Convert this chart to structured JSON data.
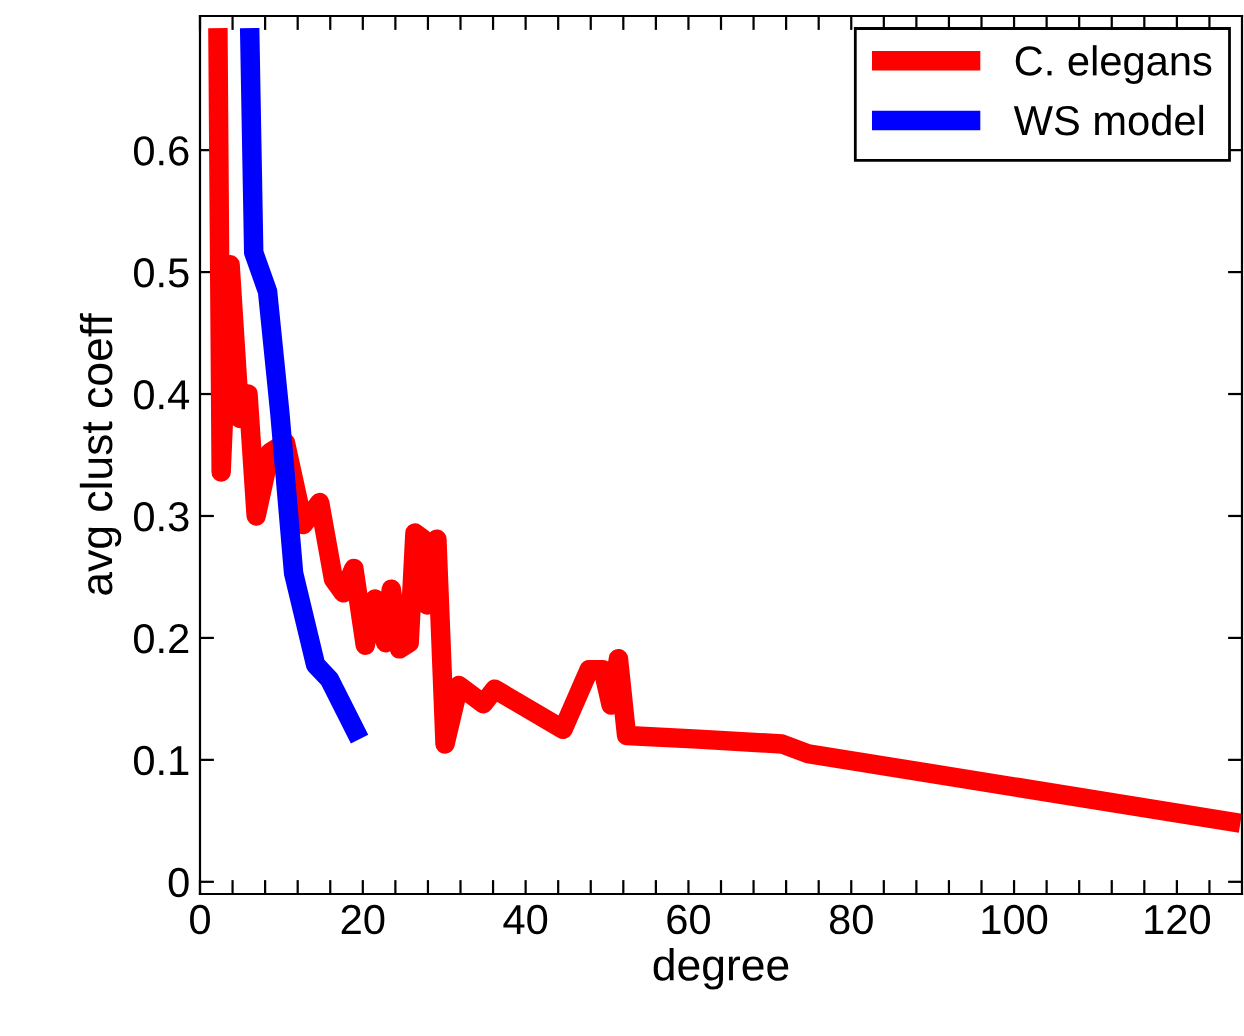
{
  "chart_data": {
    "type": "line",
    "xlabel": "degree",
    "ylabel": "avg clust coeff",
    "xlim": [
      0,
      128
    ],
    "ylim": [
      -0.01,
      0.71
    ],
    "xticks": [
      0,
      {
        "value": 4,
        "label": null
      },
      {
        "value": 8,
        "label": null
      },
      {
        "value": 12,
        "label": null
      },
      {
        "value": 16,
        "label": null
      },
      20,
      {
        "value": 24,
        "label": null
      },
      {
        "value": 28,
        "label": null
      },
      {
        "value": 32,
        "label": null
      },
      {
        "value": 36,
        "label": null
      },
      40,
      {
        "value": 44,
        "label": null
      },
      {
        "value": 48,
        "label": null
      },
      {
        "value": 52,
        "label": null
      },
      {
        "value": 56,
        "label": null
      },
      60,
      {
        "value": 64,
        "label": null
      },
      {
        "value": 68,
        "label": null
      },
      {
        "value": 72,
        "label": null
      },
      {
        "value": 76,
        "label": null
      },
      80,
      {
        "value": 84,
        "label": null
      },
      {
        "value": 88,
        "label": null
      },
      {
        "value": 92,
        "label": null
      },
      {
        "value": 96,
        "label": null
      },
      100,
      {
        "value": 104,
        "label": null
      },
      {
        "value": 108,
        "label": null
      },
      {
        "value": 112,
        "label": null
      },
      {
        "value": 116,
        "label": null
      },
      120,
      {
        "value": 124,
        "label": null
      }
    ],
    "yticks": [
      0,
      0.1,
      0.2,
      0.3,
      0.4,
      0.5,
      0.6
    ],
    "grid": false,
    "legend": "top right",
    "marker": "none",
    "line_style": "solid",
    "series": [
      {
        "name": "C. elegans",
        "color": "#ff0000",
        "x": [
          2.2,
          2.6,
          3.7,
          4.9,
          5.9,
          6.9,
          8.6,
          10.5,
          12.7,
          14.7,
          16.4,
          17.6,
          18.9,
          20.3,
          21.5,
          22.8,
          23.5,
          24.5,
          25.7,
          26.4,
          27.4,
          27.9,
          29.1,
          30.1,
          31.8,
          34.8,
          36.2,
          44.6,
          47.8,
          49.5,
          50.5,
          51.4,
          52.4,
          61.2,
          71.5,
          74.7,
          127.8
        ],
        "values": [
          0.7,
          0.336,
          0.506,
          0.38,
          0.4,
          0.3,
          0.352,
          0.36,
          0.293,
          0.311,
          0.248,
          0.237,
          0.257,
          0.194,
          0.232,
          0.196,
          0.24,
          0.191,
          0.196,
          0.286,
          0.281,
          0.227,
          0.281,
          0.113,
          0.161,
          0.146,
          0.158,
          0.125,
          0.174,
          0.174,
          0.145,
          0.183,
          0.12,
          0.117,
          0.113,
          0.105,
          0.048
        ]
      },
      {
        "name": "WS model",
        "color": "#0000ff",
        "x": [
          6.1,
          6.6,
          8.3,
          9.8,
          11.5,
          14.2,
          15.9,
          19.6
        ],
        "values": [
          0.7,
          0.516,
          0.484,
          0.385,
          0.253,
          0.178,
          0.166,
          0.117
        ]
      }
    ]
  }
}
